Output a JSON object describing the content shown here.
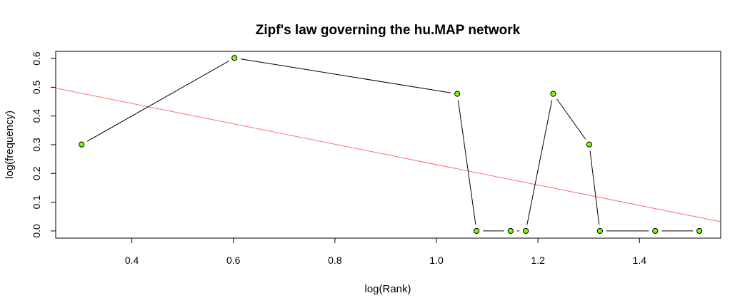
{
  "chart_data": {
    "type": "line",
    "title": "Zipf's law governing the hu.MAP network",
    "xlabel": "log(Rank)",
    "ylabel": "log(frequency)",
    "xlim": [
      0.25,
      1.56
    ],
    "ylim": [
      -0.025,
      0.625
    ],
    "x_ticks": [
      "0.4",
      "0.6",
      "0.8",
      "1.0",
      "1.2",
      "1.4"
    ],
    "y_ticks": [
      "0.0",
      "0.1",
      "0.2",
      "0.3",
      "0.4",
      "0.5",
      "0.6"
    ],
    "series": [
      {
        "x": [
          0.301,
          0.602,
          1.041,
          1.079,
          1.146,
          1.176,
          1.23,
          1.301,
          1.322,
          1.431,
          1.518
        ],
        "y": [
          0.301,
          0.602,
          0.477,
          0.0,
          0.0,
          0.0,
          0.477,
          0.301,
          0.0,
          0.0,
          0.0
        ],
        "line_color": "#000000",
        "point_fill": "#7cfc00",
        "point_stroke": "#000000"
      }
    ],
    "fit_line": {
      "x": [
        0.25,
        1.56
      ],
      "y": [
        0.497,
        0.032
      ],
      "color": "#ff6f6f"
    },
    "grid": false,
    "legend": "none"
  }
}
